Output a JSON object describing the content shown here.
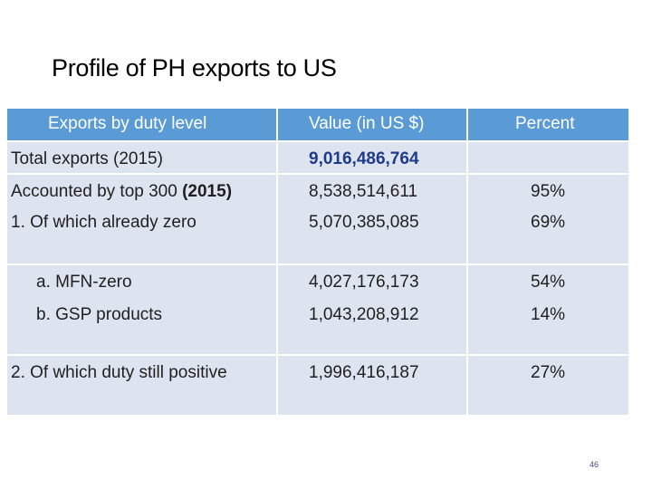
{
  "slide": {
    "title": "Profile of PH exports to US",
    "page_number": "46"
  },
  "table": {
    "headers": {
      "level": "Exports by duty level",
      "value": "Value (in US $)",
      "percent": "Percent"
    },
    "rows": [
      {
        "label": "Total exports (2015)",
        "value": "9,016,486,764",
        "percent": ""
      },
      {
        "label_a": "Accounted by top 300 ",
        "label_b": "(2015)",
        "value": "8,538,514,611",
        "percent": "95%"
      },
      {
        "label": "1. Of which already zero",
        "value": "5,070,385,085",
        "percent": "69%"
      },
      {
        "label": "a. MFN-zero",
        "value": "4,027,176,173",
        "percent": "54%"
      },
      {
        "label": "b. GSP products",
        "value": "1,043,208,912",
        "percent": "14%"
      },
      {
        "label": "2. Of which duty still positive",
        "value": "1,996,416,187",
        "percent": "27%"
      }
    ]
  },
  "colors": {
    "header_bg": "#5b9bd5",
    "band_bg": "#dde4ef",
    "total_value": "#1f3a8a"
  }
}
